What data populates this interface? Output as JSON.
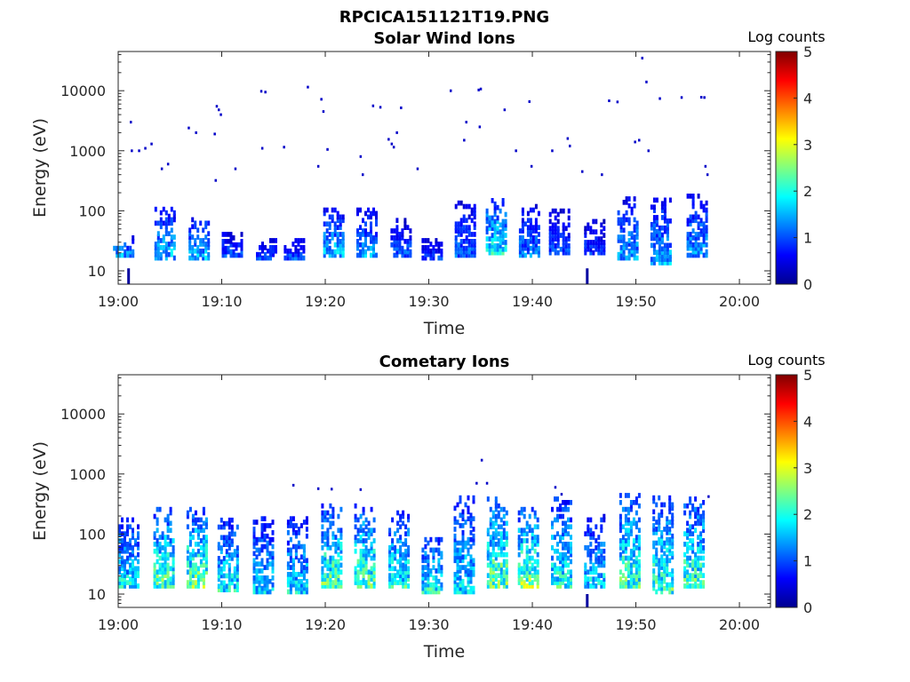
{
  "figure_title": "RPCICA151121T19.PNG",
  "chart_data": [
    {
      "type": "heatmap",
      "title": "Solar Wind Ions",
      "xlabel": "Time",
      "ylabel": "Energy (eV)",
      "x_ticks": [
        "19:00",
        "19:10",
        "19:20",
        "19:30",
        "19:40",
        "19:50",
        "20:00"
      ],
      "x_tick_minutes": [
        0,
        10,
        20,
        30,
        40,
        50,
        60
      ],
      "xlim_minutes": [
        0,
        63
      ],
      "y_scale": "log",
      "y_ticks": [
        "10",
        "100",
        "1000",
        "10000"
      ],
      "y_tick_values": [
        10,
        100,
        1000,
        10000
      ],
      "ylim": [
        6,
        45000
      ],
      "colorbar": {
        "label": "Log counts",
        "ticks": [
          "0",
          "1",
          "2",
          "3",
          "4",
          "5"
        ],
        "range": [
          0,
          5
        ],
        "colormap": "jet"
      },
      "grid": false,
      "bursts": [
        {
          "t": 0.5,
          "e_lo": 20,
          "e_hi": 40,
          "peak": 1.6
        },
        {
          "t": 4.5,
          "e_lo": 18,
          "e_hi": 120,
          "peak": 1.8
        },
        {
          "t": 7.8,
          "e_lo": 18,
          "e_hi": 100,
          "peak": 1.7
        },
        {
          "t": 11.0,
          "e_lo": 20,
          "e_hi": 50,
          "peak": 1.2
        },
        {
          "t": 14.3,
          "e_lo": 18,
          "e_hi": 40,
          "peak": 1.1
        },
        {
          "t": 17.0,
          "e_lo": 18,
          "e_hi": 40,
          "peak": 1.2
        },
        {
          "t": 20.8,
          "e_lo": 20,
          "e_hi": 120,
          "peak": 1.8
        },
        {
          "t": 24.0,
          "e_lo": 20,
          "e_hi": 120,
          "peak": 1.6
        },
        {
          "t": 27.3,
          "e_lo": 20,
          "e_hi": 80,
          "peak": 1.2
        },
        {
          "t": 30.3,
          "e_lo": 18,
          "e_hi": 40,
          "peak": 1.0
        },
        {
          "t": 33.5,
          "e_lo": 20,
          "e_hi": 150,
          "peak": 1.3
        },
        {
          "t": 36.5,
          "e_lo": 22,
          "e_hi": 180,
          "peak": 2.2
        },
        {
          "t": 39.7,
          "e_lo": 20,
          "e_hi": 140,
          "peak": 1.4
        },
        {
          "t": 42.6,
          "e_lo": 22,
          "e_hi": 120,
          "peak": 1.1
        },
        {
          "t": 46.0,
          "e_lo": 22,
          "e_hi": 80,
          "peak": 1.0
        },
        {
          "t": 49.2,
          "e_lo": 18,
          "e_hi": 180,
          "peak": 1.6
        },
        {
          "t": 52.4,
          "e_lo": 15,
          "e_hi": 180,
          "peak": 1.7
        },
        {
          "t": 55.9,
          "e_lo": 20,
          "e_hi": 220,
          "peak": 1.6
        }
      ],
      "points": [
        [
          1.2,
          3000
        ],
        [
          1.3,
          1000
        ],
        [
          2.0,
          1000
        ],
        [
          2.6,
          1100
        ],
        [
          3.2,
          1300
        ],
        [
          4.2,
          500
        ],
        [
          4.8,
          600
        ],
        [
          6.8,
          2400
        ],
        [
          7.5,
          2000
        ],
        [
          9.3,
          1900
        ],
        [
          9.4,
          320
        ],
        [
          9.5,
          5500
        ],
        [
          9.7,
          4800
        ],
        [
          9.9,
          4000
        ],
        [
          11.3,
          500
        ],
        [
          13.8,
          9800
        ],
        [
          14.2,
          9500
        ],
        [
          13.9,
          1100
        ],
        [
          16.0,
          1150
        ],
        [
          18.3,
          11500
        ],
        [
          19.6,
          7200
        ],
        [
          19.8,
          4500
        ],
        [
          20.2,
          1050
        ],
        [
          19.3,
          550
        ],
        [
          23.4,
          800
        ],
        [
          23.6,
          400
        ],
        [
          24.6,
          5600
        ],
        [
          25.3,
          5300
        ],
        [
          26.1,
          1550
        ],
        [
          26.4,
          1300
        ],
        [
          26.6,
          1150
        ],
        [
          26.9,
          2000
        ],
        [
          27.3,
          5200
        ],
        [
          28.9,
          500
        ],
        [
          32.1,
          10000
        ],
        [
          33.6,
          3000
        ],
        [
          33.4,
          1500
        ],
        [
          34.8,
          10300
        ],
        [
          35.0,
          10700
        ],
        [
          34.9,
          2500
        ],
        [
          37.3,
          4800
        ],
        [
          38.4,
          1000
        ],
        [
          39.7,
          6600
        ],
        [
          39.9,
          550
        ],
        [
          41.9,
          1000
        ],
        [
          43.4,
          1600
        ],
        [
          43.6,
          1200
        ],
        [
          44.8,
          450
        ],
        [
          46.7,
          400
        ],
        [
          47.4,
          6800
        ],
        [
          48.2,
          6500
        ],
        [
          49.9,
          1400
        ],
        [
          50.3,
          1500
        ],
        [
          50.6,
          35000
        ],
        [
          51.0,
          14000
        ],
        [
          51.2,
          1000
        ],
        [
          52.3,
          7400
        ],
        [
          54.4,
          7700
        ],
        [
          56.3,
          7800
        ],
        [
          56.6,
          7700
        ],
        [
          56.7,
          550
        ],
        [
          56.9,
          400
        ]
      ],
      "low_streaks": [
        [
          1.0,
          6,
          11
        ],
        [
          45.3,
          6,
          11
        ]
      ]
    },
    {
      "type": "heatmap",
      "title": "Cometary Ions",
      "xlabel": "Time",
      "ylabel": "Energy (eV)",
      "x_ticks": [
        "19:00",
        "19:10",
        "19:20",
        "19:30",
        "19:40",
        "19:50",
        "20:00"
      ],
      "x_tick_minutes": [
        0,
        10,
        20,
        30,
        40,
        50,
        60
      ],
      "xlim_minutes": [
        0,
        63
      ],
      "y_scale": "log",
      "y_ticks": [
        "10",
        "100",
        "1000",
        "10000"
      ],
      "y_tick_values": [
        10,
        100,
        1000,
        10000
      ],
      "ylim": [
        6,
        45000
      ],
      "colorbar": {
        "label": "Log counts",
        "ticks": [
          "0",
          "1",
          "2",
          "3",
          "4",
          "5"
        ],
        "range": [
          0,
          5
        ],
        "colormap": "jet"
      },
      "grid": false,
      "bursts": [
        {
          "t": 1.0,
          "e_lo": 15,
          "e_hi": 200,
          "peak": 2.1
        },
        {
          "t": 4.4,
          "e_lo": 15,
          "e_hi": 300,
          "peak": 2.6
        },
        {
          "t": 7.6,
          "e_lo": 15,
          "e_hi": 300,
          "peak": 2.7
        },
        {
          "t": 10.6,
          "e_lo": 13,
          "e_hi": 200,
          "peak": 2.2
        },
        {
          "t": 14.0,
          "e_lo": 12,
          "e_hi": 200,
          "peak": 1.9
        },
        {
          "t": 17.3,
          "e_lo": 12,
          "e_hi": 220,
          "peak": 2.0
        },
        {
          "t": 20.6,
          "e_lo": 15,
          "e_hi": 350,
          "peak": 2.6
        },
        {
          "t": 23.8,
          "e_lo": 15,
          "e_hi": 350,
          "peak": 2.6
        },
        {
          "t": 27.1,
          "e_lo": 15,
          "e_hi": 250,
          "peak": 2.3
        },
        {
          "t": 30.3,
          "e_lo": 12,
          "e_hi": 90,
          "peak": 2.3
        },
        {
          "t": 33.4,
          "e_lo": 12,
          "e_hi": 500,
          "peak": 2.0
        },
        {
          "t": 36.6,
          "e_lo": 15,
          "e_hi": 450,
          "peak": 2.7
        },
        {
          "t": 39.6,
          "e_lo": 15,
          "e_hi": 300,
          "peak": 2.8
        },
        {
          "t": 42.8,
          "e_lo": 15,
          "e_hi": 450,
          "peak": 2.3
        },
        {
          "t": 46.0,
          "e_lo": 15,
          "e_hi": 220,
          "peak": 2.0
        },
        {
          "t": 49.4,
          "e_lo": 15,
          "e_hi": 500,
          "peak": 2.5
        },
        {
          "t": 52.6,
          "e_lo": 12,
          "e_hi": 500,
          "peak": 2.5
        },
        {
          "t": 55.6,
          "e_lo": 15,
          "e_hi": 450,
          "peak": 2.5
        }
      ],
      "points": [
        [
          16.9,
          650
        ],
        [
          19.3,
          570
        ],
        [
          20.6,
          560
        ],
        [
          23.4,
          550
        ],
        [
          34.6,
          700
        ],
        [
          35.1,
          1700
        ],
        [
          35.6,
          700
        ],
        [
          42.2,
          600
        ],
        [
          42.8,
          460
        ],
        [
          57.0,
          420
        ]
      ],
      "low_streaks": [
        [
          45.3,
          6,
          10
        ]
      ]
    }
  ]
}
